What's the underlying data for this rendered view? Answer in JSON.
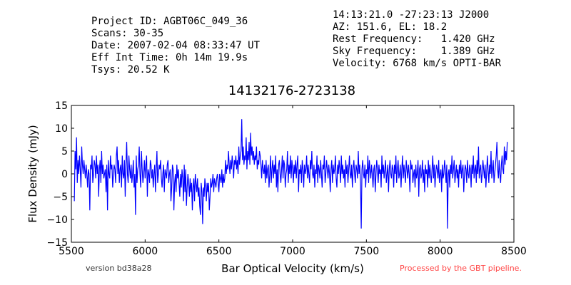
{
  "header_left": [
    "Project ID: AGBT06C_049_36",
    "Scans: 30-35",
    "Date: 2007-02-04 08:33:47 UT",
    "Eff Int Time: 0h 14m 19.9s",
    "Tsys: 20.52 K"
  ],
  "header_right": [
    "14:13:21.0 -27:23:13 J2000",
    "AZ: 151.6, EL: 18.2",
    "Rest Frequency:   1.420 GHz",
    "Sky Frequency:    1.389 GHz",
    "Velocity: 6768 km/s OPTI-BAR"
  ],
  "footer": {
    "version": "version bd38a28",
    "processed": "Processed by the GBT pipeline.",
    "processed_color": "#ff4444"
  },
  "chart_data": {
    "type": "line",
    "title": "14132176-2723138",
    "xlabel": "Bar Optical Velocity (km/s)",
    "ylabel": "Flux Density (mJy)",
    "xlim": [
      5500,
      8500
    ],
    "ylim": [
      -15,
      15
    ],
    "xticks": [
      5500,
      6000,
      6500,
      7000,
      7500,
      8000,
      8500
    ],
    "yticks": [
      -15,
      -10,
      -5,
      0,
      5,
      10,
      15
    ],
    "ytick_labels": [
      "−15",
      "−10",
      "−5",
      "0",
      "5",
      "10",
      "15"
    ],
    "grid": false,
    "line_color": "#0000ff",
    "series": [
      {
        "x_start": 5520,
        "x_step": 5,
        "values": [
          -6,
          5,
          1,
          8,
          -2,
          3,
          0,
          4,
          1,
          -3,
          6,
          2,
          0,
          3,
          1,
          -1,
          2,
          0,
          -3,
          1,
          0,
          -8,
          2,
          1,
          4,
          -2,
          0,
          3,
          2,
          -1,
          4,
          0,
          2,
          -5,
          1,
          3,
          -2,
          5,
          0,
          2,
          -1,
          0,
          1,
          -4,
          2,
          -8,
          3,
          0,
          -1,
          4,
          1,
          2,
          -3,
          0,
          2,
          1,
          -2,
          4,
          6,
          0,
          3,
          -2,
          1,
          2,
          -3,
          4,
          0,
          -1,
          3,
          -5,
          2,
          7,
          0,
          -2,
          4,
          1,
          -1,
          2,
          -2,
          0,
          3,
          -3,
          0,
          -9,
          4,
          -2,
          1,
          2,
          6,
          0,
          -3,
          5,
          1,
          -2,
          0,
          3,
          -1,
          2,
          4,
          -5,
          1,
          0,
          -2,
          3,
          2,
          -1,
          1,
          -3,
          0,
          2,
          -4,
          1,
          5,
          -2,
          0,
          2,
          1,
          3,
          -1,
          -3,
          0,
          2,
          -4,
          1,
          0,
          -1,
          2,
          3,
          -2,
          0,
          1,
          -6,
          -3,
          2,
          1,
          -8,
          -2,
          0,
          -4,
          2,
          -1,
          1,
          -2,
          -5,
          0,
          -3,
          1,
          -1,
          -6,
          2,
          -4,
          1,
          -7,
          -3,
          0,
          -2,
          -5,
          -1,
          -4,
          -2,
          -8,
          -3,
          -1,
          -6,
          0,
          -2,
          -4,
          -1,
          -5,
          -3,
          -7,
          -9,
          -2,
          -4,
          -11,
          -3,
          -5,
          -1,
          -3,
          -6,
          -2,
          -4,
          -2,
          -8,
          -5,
          -1,
          -3,
          -2,
          0,
          -4,
          -1,
          -2,
          -3,
          -1,
          0,
          -2,
          -4,
          0,
          -1,
          -2,
          1,
          -3,
          0,
          -2,
          -1,
          3,
          0,
          2,
          1,
          5,
          2,
          0,
          3,
          1,
          4,
          2,
          -1,
          3,
          2,
          4,
          1,
          3,
          0,
          6,
          2,
          4,
          5,
          12,
          3,
          6,
          2,
          4,
          3,
          8,
          1,
          5,
          3,
          7,
          2,
          9,
          4,
          6,
          3,
          5,
          2,
          4,
          3,
          6,
          1,
          3,
          2,
          5,
          4,
          2,
          -1,
          3,
          1,
          0,
          2,
          -2,
          3,
          -1,
          1,
          2,
          -3,
          0,
          4,
          -2,
          1,
          3,
          -1,
          2,
          0,
          4,
          -3,
          1,
          -4,
          2,
          3,
          0,
          -2,
          1,
          4,
          -1,
          3,
          2,
          -3,
          0,
          1,
          5,
          -2,
          2,
          0,
          4,
          -1,
          3,
          1,
          -2,
          2,
          0,
          3,
          -1,
          2,
          4,
          -4,
          1,
          0,
          2,
          -2,
          3,
          1,
          -3,
          2,
          0,
          1,
          4,
          -1,
          2,
          0,
          -2,
          3,
          1,
          5,
          0,
          -1,
          2,
          -3,
          1,
          0,
          4,
          -2,
          2,
          1,
          -1,
          3,
          0,
          -3,
          2,
          1,
          4,
          -2,
          0,
          3,
          1,
          -1,
          2,
          0,
          -4,
          1,
          3,
          -2,
          2,
          0,
          1,
          4,
          -1,
          -3,
          2,
          0,
          3,
          1,
          -2,
          4,
          0,
          2,
          -1,
          1,
          -3,
          3,
          0,
          2,
          -2,
          1,
          4,
          0,
          -1,
          2,
          -3,
          1,
          3,
          0,
          -2,
          2,
          1,
          -1,
          5,
          0,
          2,
          -2,
          -12,
          1,
          3,
          0,
          -1,
          2,
          -3,
          1,
          0,
          4,
          -2,
          3,
          1,
          -1,
          2,
          0,
          -3,
          1,
          2,
          -4,
          0,
          3,
          1,
          -2,
          2,
          0,
          1,
          -3,
          4,
          0,
          2,
          -1,
          1,
          3,
          -2,
          0,
          2,
          -4,
          1,
          3,
          0,
          -1,
          2,
          1,
          -3,
          2,
          0,
          4,
          -2,
          1,
          3,
          -1,
          0,
          2,
          -3,
          1,
          4,
          -1,
          2,
          0,
          -2,
          3,
          1,
          -1,
          2,
          0,
          -4,
          3,
          1,
          2,
          -2,
          0,
          1,
          -3,
          2,
          -1,
          0,
          3,
          -5,
          1,
          2,
          -1,
          0,
          3,
          -2,
          1,
          -4,
          2,
          0,
          1,
          -3,
          3,
          -1,
          2,
          0,
          -2,
          1,
          4,
          -1,
          2,
          -3,
          0,
          2,
          1,
          -1,
          3,
          -2,
          0,
          1,
          -4,
          2,
          -1,
          0,
          3,
          1,
          -2,
          2,
          -12,
          0,
          1,
          -3,
          2,
          0,
          4,
          -1,
          1,
          3,
          -2,
          0,
          2,
          -1,
          1,
          -3,
          2,
          0,
          3,
          -1,
          1,
          2,
          -4,
          0,
          2,
          1,
          -2,
          3,
          0,
          -1,
          2,
          1,
          -3,
          2,
          0,
          4,
          -1,
          1,
          2,
          -2,
          3,
          0,
          6,
          -1,
          1,
          2,
          -2,
          0,
          3,
          1,
          -1,
          2,
          -3,
          0,
          4,
          1,
          -2,
          2,
          0,
          5,
          -1,
          1,
          3,
          -2,
          0,
          2,
          4,
          7,
          1,
          -1,
          3,
          0,
          -2,
          2,
          4,
          1,
          0,
          6,
          2,
          5,
          3,
          7
        ]
      }
    ]
  }
}
